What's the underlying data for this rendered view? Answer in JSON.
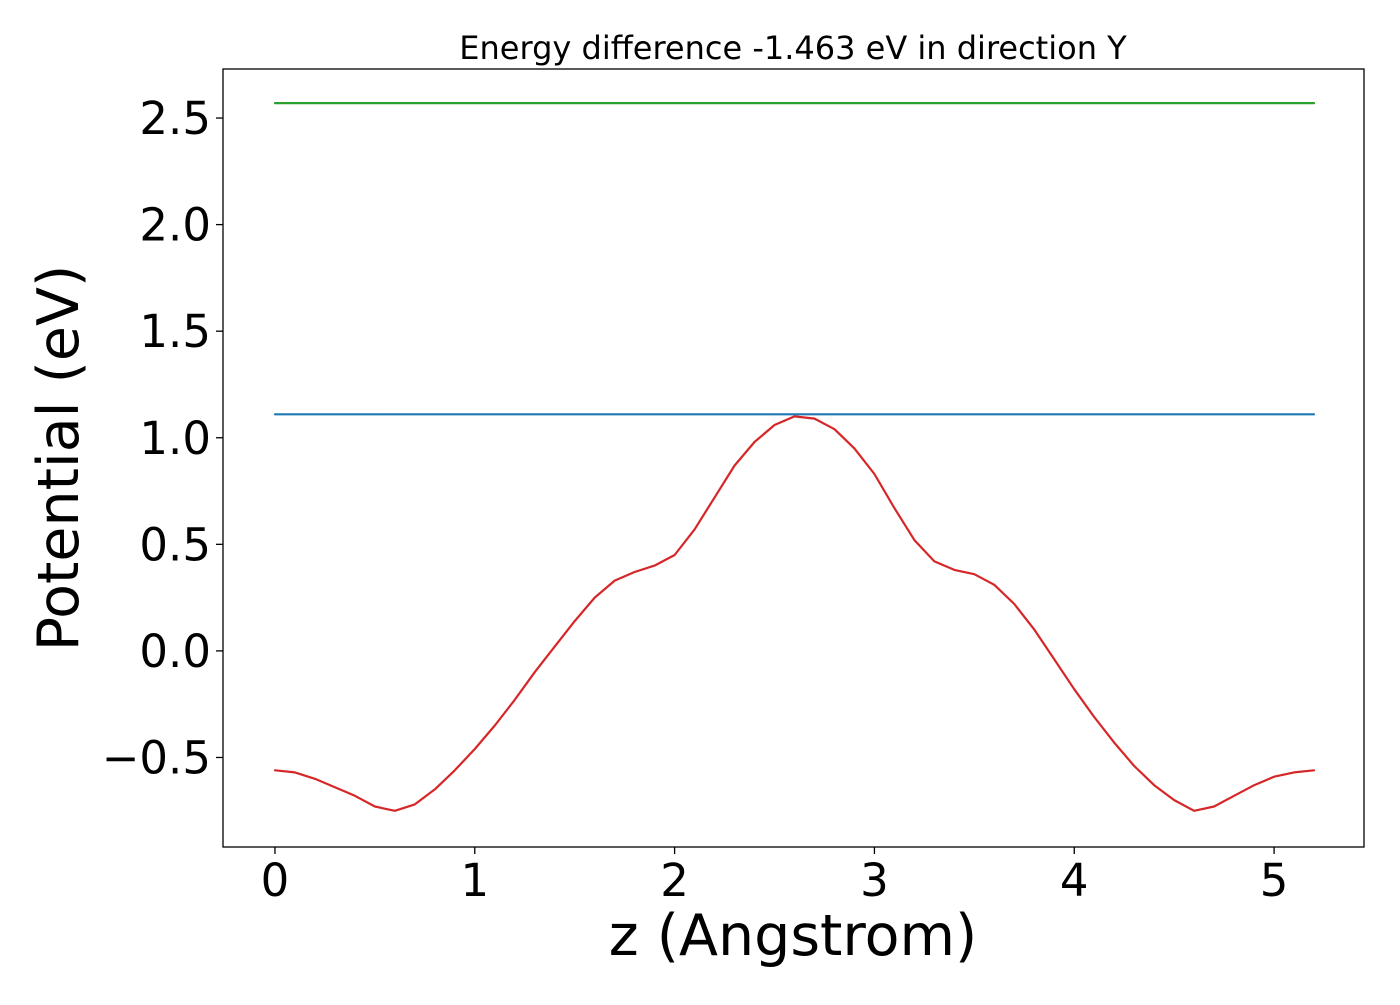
{
  "chart_data": {
    "type": "line",
    "title": "Energy difference -1.463 eV in direction Y",
    "xlabel": "z (Angstrom)",
    "ylabel": "Potential (eV)",
    "xlim": [
      -0.26,
      5.45
    ],
    "ylim": [
      -0.92,
      2.73
    ],
    "grid": false,
    "x_ticks": [
      0,
      1,
      2,
      3,
      4,
      5
    ],
    "x_tick_labels": [
      "0",
      "1",
      "2",
      "3",
      "4",
      "5"
    ],
    "y_ticks": [
      -0.5,
      0.0,
      0.5,
      1.0,
      1.5,
      2.0,
      2.5
    ],
    "y_tick_labels": [
      "−0.5",
      "0.0",
      "0.5",
      "1.0",
      "1.5",
      "2.0",
      "2.5"
    ],
    "series": [
      {
        "color": "#d62728",
        "x": [
          0,
          0.1,
          0.2,
          0.3,
          0.4,
          0.5,
          0.6,
          0.7,
          0.8,
          0.9,
          1.0,
          1.1,
          1.2,
          1.3,
          1.4,
          1.5,
          1.6,
          1.7,
          1.8,
          1.9,
          2.0,
          2.1,
          2.2,
          2.3,
          2.4,
          2.5,
          2.6,
          2.7,
          2.8,
          2.9,
          3.0,
          3.1,
          3.2,
          3.3,
          3.4,
          3.5,
          3.6,
          3.7,
          3.8,
          3.9,
          4.0,
          4.1,
          4.2,
          4.3,
          4.4,
          4.5,
          4.6,
          4.7,
          4.8,
          4.9,
          5.0,
          5.1,
          5.2
        ],
        "y": [
          -0.56,
          -0.57,
          -0.6,
          -0.64,
          -0.68,
          -0.73,
          -0.75,
          -0.72,
          -0.65,
          -0.56,
          -0.46,
          -0.35,
          -0.23,
          -0.1,
          0.02,
          0.14,
          0.25,
          0.33,
          0.37,
          0.4,
          0.45,
          0.57,
          0.72,
          0.87,
          0.98,
          1.06,
          1.1,
          1.09,
          1.04,
          0.95,
          0.83,
          0.67,
          0.52,
          0.42,
          0.38,
          0.36,
          0.31,
          0.22,
          0.1,
          -0.04,
          -0.18,
          -0.31,
          -0.43,
          -0.54,
          -0.63,
          -0.7,
          -0.75,
          -0.73,
          -0.68,
          -0.63,
          -0.59,
          -0.57,
          -0.56
        ]
      },
      {
        "color": "#1f77b4",
        "x": [
          0,
          5.2
        ],
        "y": [
          1.11,
          1.11
        ]
      },
      {
        "color": "#2ca02c",
        "x": [
          0,
          5.2
        ],
        "y": [
          2.57,
          2.57
        ]
      }
    ]
  }
}
